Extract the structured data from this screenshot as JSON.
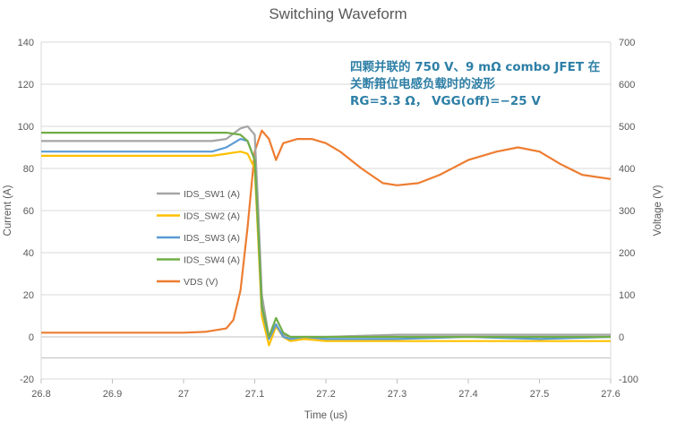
{
  "chart_data": {
    "type": "line",
    "title": "Switching Waveform",
    "annotation": [
      "四颗并联的 750 V、9 mΩ combo JFET 在",
      "关断箝位电感负载时的波形",
      "RG=3.3 Ω， VGG(off)=−25 V"
    ],
    "xlabel": "Time (us)",
    "ylabel_left": "Current (A)",
    "ylabel_right": "Voltage (V)",
    "xlim": [
      26.8,
      27.6
    ],
    "ylim_left": [
      -20,
      140
    ],
    "ylim_right": [
      -100,
      700
    ],
    "x_ticks": [
      "26.8",
      "26.9",
      "27",
      "27.1",
      "27.2",
      "27.3",
      "27.4",
      "27.5",
      "27.6"
    ],
    "y_ticks_left": [
      "-20",
      "0",
      "20",
      "40",
      "60",
      "80",
      "100",
      "120",
      "140"
    ],
    "y_ticks_right": [
      "-100",
      "0",
      "100",
      "200",
      "300",
      "400",
      "500",
      "600",
      "700"
    ],
    "grid": true,
    "legend_position": "left-middle",
    "series": [
      {
        "name": "IDS_SW1 (A)",
        "axis": "left",
        "color": "#a5a5a5",
        "x": [
          26.8,
          26.85,
          26.9,
          26.95,
          27.0,
          27.02,
          27.04,
          27.06,
          27.08,
          27.09,
          27.1,
          27.105,
          27.11,
          27.12,
          27.13,
          27.14,
          27.15,
          27.17,
          27.2,
          27.3,
          27.4,
          27.5,
          27.6
        ],
        "y": [
          93,
          93,
          93,
          93,
          93,
          93,
          93,
          94,
          99,
          100,
          96,
          60,
          20,
          0,
          5,
          1,
          0,
          0,
          0,
          1,
          1,
          1,
          1
        ]
      },
      {
        "name": "IDS_SW2 (A)",
        "axis": "left",
        "color": "#ffc000",
        "x": [
          26.8,
          26.85,
          26.9,
          26.95,
          27.0,
          27.02,
          27.04,
          27.06,
          27.08,
          27.09,
          27.1,
          27.105,
          27.11,
          27.12,
          27.13,
          27.14,
          27.15,
          27.17,
          27.2,
          27.3,
          27.4,
          27.5,
          27.6
        ],
        "y": [
          86,
          86,
          86,
          86,
          86,
          86,
          86,
          87,
          88,
          87,
          80,
          45,
          10,
          -4,
          5,
          0,
          -2,
          -1,
          -2,
          -2,
          -2,
          -2,
          -2
        ]
      },
      {
        "name": "IDS_SW3 (A)",
        "axis": "left",
        "color": "#5b9bd5",
        "x": [
          26.8,
          26.85,
          26.9,
          26.95,
          27.0,
          27.02,
          27.04,
          27.06,
          27.08,
          27.09,
          27.1,
          27.105,
          27.11,
          27.12,
          27.13,
          27.14,
          27.15,
          27.17,
          27.2,
          27.3,
          27.4,
          27.5,
          27.6
        ],
        "y": [
          88,
          88,
          88,
          88,
          88,
          88,
          88,
          90,
          94,
          93,
          84,
          50,
          14,
          -1,
          6,
          0,
          -1,
          0,
          -1,
          -1,
          0,
          -1,
          0
        ]
      },
      {
        "name": "IDS_SW4 (A)",
        "axis": "left",
        "color": "#70ad47",
        "x": [
          26.8,
          26.85,
          26.9,
          26.95,
          27.0,
          27.02,
          27.04,
          27.06,
          27.08,
          27.09,
          27.1,
          27.105,
          27.11,
          27.12,
          27.13,
          27.14,
          27.15,
          27.17,
          27.2,
          27.3,
          27.4,
          27.5,
          27.6
        ],
        "y": [
          97,
          97,
          97,
          97,
          97,
          97,
          97,
          97,
          96,
          93,
          84,
          50,
          15,
          0,
          9,
          2,
          0,
          0,
          0,
          0,
          0,
          0,
          0
        ]
      },
      {
        "name": "VDS (V)",
        "axis": "right",
        "color": "#ed7d31",
        "x": [
          26.8,
          26.85,
          26.9,
          26.95,
          27.0,
          27.03,
          27.06,
          27.07,
          27.08,
          27.09,
          27.1,
          27.11,
          27.12,
          27.13,
          27.14,
          27.16,
          27.18,
          27.2,
          27.22,
          27.25,
          27.28,
          27.3,
          27.33,
          27.36,
          27.4,
          27.44,
          27.47,
          27.5,
          27.53,
          27.56,
          27.6
        ],
        "y": [
          10,
          10,
          10,
          10,
          10,
          12,
          20,
          40,
          110,
          260,
          440,
          490,
          470,
          420,
          460,
          470,
          470,
          460,
          440,
          400,
          365,
          360,
          365,
          385,
          420,
          440,
          450,
          440,
          410,
          385,
          375
        ]
      }
    ]
  }
}
